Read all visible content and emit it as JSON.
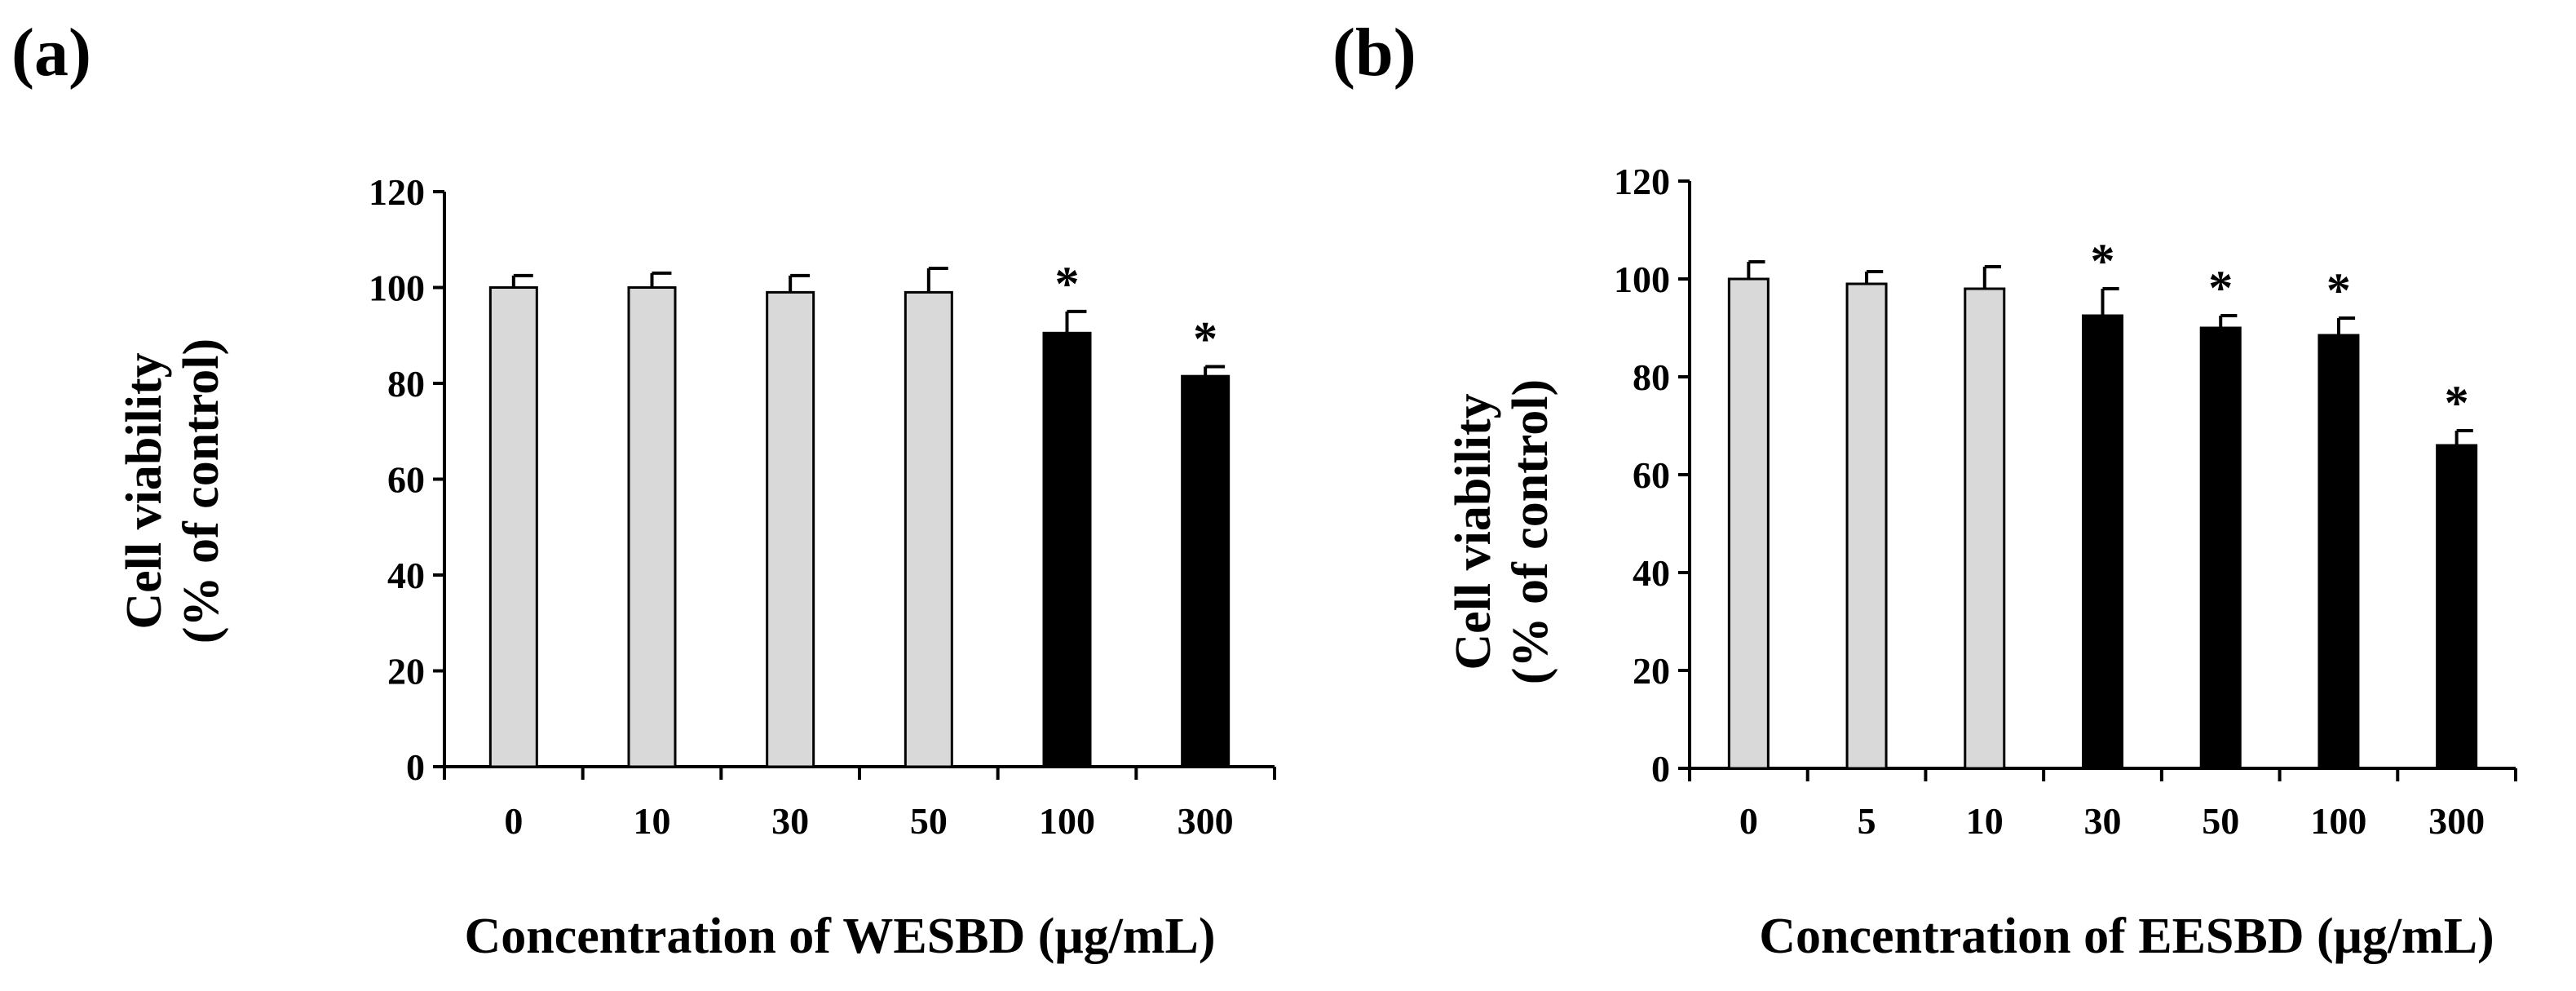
{
  "figure": {
    "panels": [
      "(a)",
      "(b)"
    ]
  },
  "colors": {
    "control_fill": "#d9d9d9",
    "significant_fill": "#000000",
    "stroke": "#000000"
  },
  "chart_data": [
    {
      "type": "bar",
      "panel_label": "(a)",
      "categories": [
        "0",
        "10",
        "30",
        "50",
        "100",
        "300"
      ],
      "values": [
        100,
        100,
        99,
        99,
        90.5,
        81.5
      ],
      "errors": [
        2.5,
        3,
        3.5,
        5,
        4.5,
        2
      ],
      "significant": [
        false,
        false,
        false,
        false,
        true,
        true
      ],
      "annotation": "*",
      "xlabel": "Concentration of WESBD (μg/mL)",
      "ylabel_line1": "Cell viability",
      "ylabel_line2": "(% of control)",
      "ylim": [
        0,
        120
      ],
      "yticks": [
        0,
        20,
        40,
        60,
        80,
        100,
        120
      ],
      "ytick_labels": [
        "0",
        "20",
        "40",
        "60",
        "80",
        "100",
        "120"
      ],
      "grid": false,
      "legend": "none"
    },
    {
      "type": "bar",
      "panel_label": "(b)",
      "categories": [
        "0",
        "5",
        "10",
        "30",
        "50",
        "100",
        "300"
      ],
      "values": [
        100,
        99,
        98,
        92.5,
        90,
        88.5,
        66
      ],
      "errors": [
        3.5,
        2.5,
        4.5,
        5.5,
        2.5,
        3.5,
        3
      ],
      "significant": [
        false,
        false,
        false,
        true,
        true,
        true,
        true
      ],
      "annotation": "*",
      "xlabel": "Concentration of EESBD (μg/mL)",
      "ylabel_line1": "Cell viability",
      "ylabel_line2": "(% of control)",
      "ylim": [
        0,
        120
      ],
      "yticks": [
        0,
        20,
        40,
        60,
        80,
        100,
        120
      ],
      "ytick_labels": [
        "0",
        "20",
        "40",
        "60",
        "80",
        "100",
        "120"
      ],
      "grid": false,
      "legend": "none"
    }
  ]
}
